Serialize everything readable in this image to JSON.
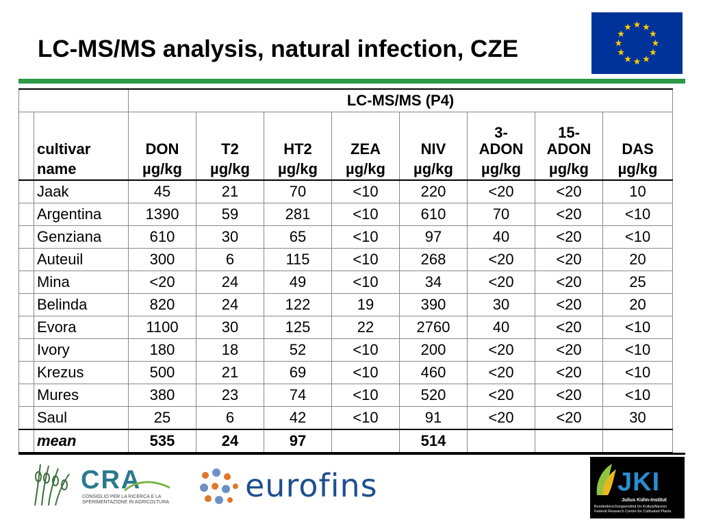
{
  "title": "LC-MS/MS analysis, natural infection, CZE",
  "table": {
    "group_header": "LC-MS/MS (P4)",
    "col_label_top": "cultivar",
    "col_label_bottom": "name",
    "columns": [
      {
        "name": "DON",
        "unit": "µg/kg"
      },
      {
        "name": "T2",
        "unit": "µg/kg"
      },
      {
        "name": "HT2",
        "unit": "µg/kg"
      },
      {
        "name": "ZEA",
        "unit": "µg/kg"
      },
      {
        "name": "NIV",
        "unit": "µg/kg"
      },
      {
        "name_top": "3-",
        "name": "ADON",
        "unit": "µg/kg"
      },
      {
        "name_top": "15-",
        "name": "ADON",
        "unit": "µg/kg"
      },
      {
        "name": "DAS",
        "unit": "µg/kg"
      }
    ],
    "rows": [
      {
        "cultivar": "Jaak",
        "values": [
          "45",
          "21",
          "70",
          "<10",
          "220",
          "<20",
          "<20",
          "10"
        ]
      },
      {
        "cultivar": "Argentina",
        "values": [
          "1390",
          "59",
          "281",
          "<10",
          "610",
          "70",
          "<20",
          "<10"
        ]
      },
      {
        "cultivar": "Genziana",
        "values": [
          "610",
          "30",
          "65",
          "<10",
          "97",
          "40",
          "<20",
          "<10"
        ]
      },
      {
        "cultivar": "Auteuil",
        "values": [
          "300",
          "6",
          "115",
          "<10",
          "268",
          "<20",
          "<20",
          "20"
        ]
      },
      {
        "cultivar": "Mina",
        "values": [
          "<20",
          "24",
          "49",
          "<10",
          "34",
          "<20",
          "<20",
          "25"
        ]
      },
      {
        "cultivar": "Belinda",
        "values": [
          "820",
          "24",
          "122",
          "19",
          "390",
          "30",
          "<20",
          "20"
        ]
      },
      {
        "cultivar": "Evora",
        "values": [
          "1100",
          "30",
          "125",
          "22",
          "2760",
          "40",
          "<20",
          "<10"
        ]
      },
      {
        "cultivar": "Ivory",
        "values": [
          "180",
          "18",
          "52",
          "<10",
          "200",
          "<20",
          "<20",
          "<10"
        ]
      },
      {
        "cultivar": "Krezus",
        "values": [
          "500",
          "21",
          "69",
          "<10",
          "460",
          "<20",
          "<20",
          "<10"
        ]
      },
      {
        "cultivar": "Mures",
        "values": [
          "380",
          "23",
          "74",
          "<10",
          "520",
          "<20",
          "<20",
          "<10"
        ]
      },
      {
        "cultivar": "Saul",
        "values": [
          "25",
          "6",
          "42",
          "<10",
          "91",
          "<20",
          "<20",
          "30"
        ]
      }
    ],
    "mean": {
      "label": "mean",
      "values": [
        "535",
        "24",
        "97",
        "",
        "514",
        "",
        "",
        ""
      ]
    }
  },
  "logos": {
    "cra_word": "CRA",
    "cra_sub": "CONSIGLIO PER LA RICERCA E LA SPERIMENTAZIONE IN AGRICOLTURA",
    "eurofins_word": "eurofins",
    "jki_word": "JKI",
    "jki_line1": "Julius Kühn-Institut",
    "jki_line2a": "Bundesforschungsinstitut für Kulturpflanzen",
    "jki_line2b": "Federal Research Centre for Cultivated Plants"
  },
  "colors": {
    "rule_green": "#2e9a48",
    "eu_blue": "#003399",
    "eu_gold": "#ffcc00",
    "cra_teal": "#2b7a8c",
    "eurofins_blue": "#1f4f8e",
    "jki_blue": "#2a8fd1"
  }
}
